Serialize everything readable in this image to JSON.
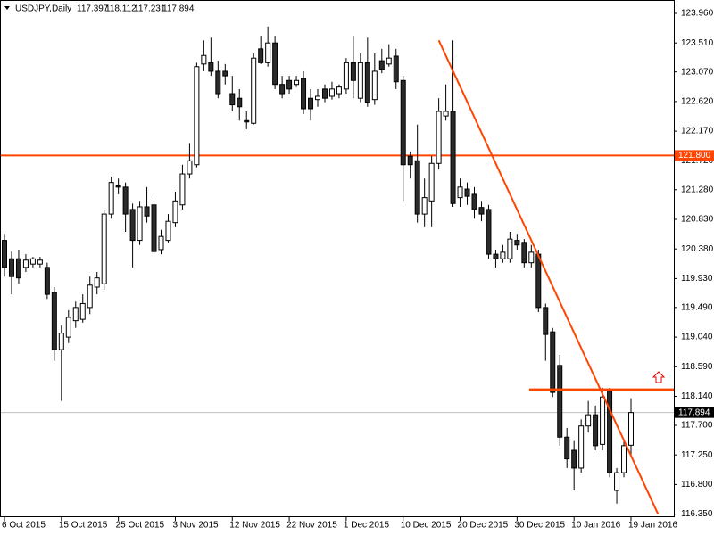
{
  "chart_data": {
    "type": "candlestick",
    "title": "USDJPY,Daily",
    "categories": [
      "6 Oct 2015",
      null,
      null,
      null,
      null,
      null,
      null,
      null,
      "15 Oct 2015",
      null,
      null,
      null,
      null,
      null,
      null,
      null,
      "25 Oct 2015",
      null,
      null,
      null,
      null,
      null,
      null,
      null,
      "3 Nov 2015",
      null,
      null,
      null,
      null,
      null,
      null,
      null,
      "12 Nov 2015",
      null,
      null,
      null,
      null,
      null,
      null,
      null,
      "22 Nov 2015",
      null,
      null,
      null,
      null,
      null,
      null,
      null,
      "1 Dec 2015",
      null,
      null,
      null,
      null,
      null,
      null,
      null,
      "10 Dec 2015",
      null,
      null,
      null,
      null,
      null,
      null,
      null,
      "20 Dec 2015",
      null,
      null,
      null,
      null,
      null,
      null,
      null,
      "30 Dec 2015",
      null,
      null,
      null,
      null,
      null,
      null,
      null,
      "10 Jan 2016",
      null,
      null,
      null,
      null,
      null,
      null,
      null,
      "19 Jan 2016"
    ],
    "open": [
      120.51,
      120.23,
      120.23,
      120.1,
      120.15,
      120.15,
      120.1,
      119.72,
      118.85,
      119.04,
      119.29,
      119.31,
      119.49,
      119.8,
      119.85,
      120.91,
      121.34,
      121.32,
      120.98,
      120.51,
      121.02,
      121.05,
      120.37,
      120.51,
      120.78,
      121.05,
      121.52,
      121.66,
      123.19,
      123.21,
      123.08,
      123.08,
      122.74,
      122.67,
      122.33,
      122.29,
      123.42,
      123.21,
      123.51,
      122.88,
      122.94,
      122.88,
      122.97,
      122.67,
      122.65,
      122.81,
      122.7,
      122.74,
      122.81,
      123.21,
      122.67,
      123.21,
      122.65,
      123.24,
      123.19,
      123.31,
      122.94,
      121.79,
      121.72,
      120.91,
      121.11,
      121.68,
      122.4,
      122.47,
      121.16,
      121.29,
      121.21,
      121.01,
      120.98,
      120.3,
      120.23,
      120.23,
      120.51,
      120.48,
      120.17,
      120.3,
      119.49,
      119.12,
      118.61,
      117.52,
      117.32,
      117.05,
      117.69,
      117.86,
      117.41,
      118.24,
      116.71,
      116.98,
      117.397
    ],
    "high": [
      120.61,
      120.34,
      120.37,
      120.3,
      120.26,
      120.26,
      120.17,
      119.8,
      119.22,
      119.45,
      119.58,
      119.69,
      119.96,
      120.03,
      120.98,
      121.48,
      121.45,
      121.39,
      121.07,
      121.11,
      121.32,
      121.16,
      120.67,
      120.91,
      121.25,
      121.66,
      121.99,
      123.21,
      123.55,
      123.59,
      123.24,
      123.19,
      123.01,
      122.81,
      122.47,
      123.35,
      123.62,
      123.76,
      123.62,
      123.01,
      123.01,
      123.01,
      123.08,
      122.81,
      122.81,
      122.88,
      122.92,
      122.88,
      123.28,
      123.62,
      123.35,
      123.59,
      123.35,
      123.42,
      123.49,
      123.42,
      123.01,
      121.86,
      122.27,
      121.45,
      121.79,
      122.67,
      122.88,
      123.55,
      121.45,
      121.39,
      121.32,
      121.11,
      121.05,
      120.37,
      120.44,
      120.64,
      120.61,
      120.53,
      120.44,
      120.37,
      119.55,
      119.18,
      118.77,
      117.66,
      117.46,
      117.79,
      118.07,
      118.0,
      118.27,
      118.27,
      117.05,
      117.46,
      118.112
    ],
    "low": [
      119.96,
      119.69,
      119.85,
      120.03,
      120.1,
      120.1,
      119.62,
      118.68,
      118.07,
      118.95,
      119.18,
      119.26,
      119.39,
      119.69,
      119.76,
      120.84,
      121.21,
      120.64,
      120.1,
      120.44,
      120.78,
      120.3,
      120.3,
      120.48,
      120.71,
      120.98,
      121.45,
      121.62,
      123.08,
      123.01,
      122.67,
      122.88,
      122.47,
      122.33,
      122.2,
      122.27,
      123.19,
      123.15,
      122.81,
      122.67,
      122.74,
      122.84,
      122.43,
      122.33,
      122.54,
      122.61,
      122.65,
      122.67,
      122.74,
      122.67,
      122.61,
      122.54,
      122.57,
      123.05,
      123.15,
      122.81,
      121.11,
      121.45,
      120.78,
      120.71,
      120.71,
      121.59,
      122.33,
      121.02,
      121.02,
      121.05,
      120.84,
      120.8,
      120.23,
      120.1,
      120.17,
      120.17,
      120.37,
      120.1,
      120.1,
      119.42,
      118.68,
      118.13,
      117.39,
      117.05,
      116.71,
      116.98,
      117.59,
      117.32,
      117.32,
      116.91,
      116.51,
      116.91,
      117.231
    ],
    "close": [
      120.1,
      119.96,
      119.94,
      120.21,
      120.23,
      120.21,
      119.69,
      118.85,
      119.1,
      119.34,
      119.49,
      119.55,
      119.83,
      119.94,
      120.91,
      121.39,
      121.32,
      120.91,
      120.51,
      121.02,
      120.88,
      120.34,
      120.57,
      120.8,
      121.11,
      121.52,
      121.72,
      123.15,
      123.32,
      123.08,
      122.74,
      123.01,
      122.57,
      122.54,
      122.31,
      123.28,
      123.21,
      123.51,
      122.88,
      122.74,
      122.81,
      122.94,
      122.51,
      122.51,
      122.7,
      122.67,
      122.81,
      122.84,
      123.21,
      122.94,
      123.21,
      122.61,
      123.08,
      123.11,
      123.28,
      122.92,
      121.66,
      121.66,
      120.91,
      121.16,
      121.68,
      122.47,
      122.47,
      121.07,
      121.32,
      121.18,
      120.98,
      120.91,
      120.3,
      120.23,
      120.33,
      120.53,
      120.44,
      120.17,
      120.33,
      119.49,
      119.08,
      118.2,
      117.52,
      117.19,
      117.05,
      117.69,
      117.86,
      117.39,
      118.13,
      116.98,
      116.98,
      117.39,
      117.894
    ],
    "up_color": "#ffffff",
    "down_color": "#2b2b2b",
    "candle_stroke": "#000000",
    "ylim": [
      116.35,
      123.96
    ],
    "yticks": [
      {
        "value": 123.96,
        "label": "123.960"
      },
      {
        "value": 123.51,
        "label": "123.510"
      },
      {
        "value": 123.07,
        "label": "123.070"
      },
      {
        "value": 122.62,
        "label": "122.620"
      },
      {
        "value": 122.17,
        "label": "122.170"
      },
      {
        "value": 121.72,
        "label": "121.720"
      },
      {
        "value": 121.28,
        "label": "121.280"
      },
      {
        "value": 120.83,
        "label": "120.830"
      },
      {
        "value": 120.38,
        "label": "120.380"
      },
      {
        "value": 119.93,
        "label": "119.930"
      },
      {
        "value": 119.49,
        "label": "119.490"
      },
      {
        "value": 119.04,
        "label": "119.040"
      },
      {
        "value": 118.59,
        "label": "118.590"
      },
      {
        "value": 118.14,
        "label": "118.140"
      },
      {
        "value": 117.7,
        "label": "117.700"
      },
      {
        "value": 117.25,
        "label": "117.250"
      },
      {
        "value": 116.8,
        "label": "116.800"
      },
      {
        "value": 116.35,
        "label": "116.350"
      }
    ],
    "hlines": [
      {
        "value": 121.8,
        "label": "121.800",
        "color": "#ff4500"
      },
      {
        "value": 117.894,
        "color": "#c0c0c0",
        "label_color": "#000000"
      }
    ],
    "segments": [
      {
        "x": [
          73.7,
          95
        ],
        "y": [
          118.24,
          118.24
        ],
        "color": "#ff4500",
        "width": 3
      },
      {
        "x": [
          61,
          91.8
        ],
        "y": [
          123.55,
          116.35
        ],
        "color": "#ff4500",
        "width": 2
      }
    ]
  }
}
